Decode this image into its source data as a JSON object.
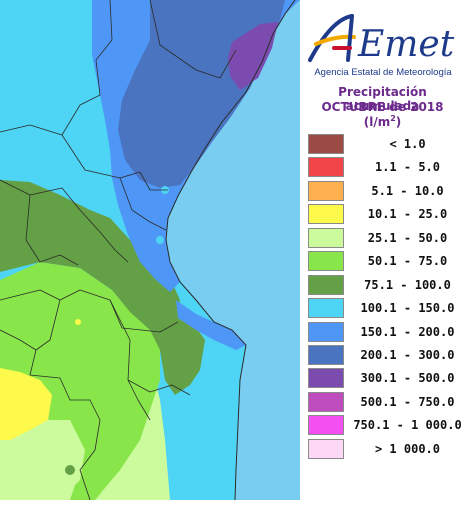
{
  "header": {
    "brand": "AEmet",
    "agency": "Agencia Estatal de Meteorología"
  },
  "title": {
    "line1": "Precipitación acumulada",
    "line2": "OCTUBRE de 2018",
    "units": "(l/m",
    "units_sup": "2",
    "units_close": ")"
  },
  "colors": {
    "sea": "#79cdf0",
    "border": "#2b2b2b",
    "accent": "#6b2a8c"
  },
  "legend": [
    {
      "label": "< 1.0",
      "color": "#9b4a44"
    },
    {
      "label": "1.1 - 5.0",
      "color": "#f2454a"
    },
    {
      "label": "5.1 - 10.0",
      "color": "#fdb04e"
    },
    {
      "label": "10.1 - 25.0",
      "color": "#fdfa4c"
    },
    {
      "label": "25.1 - 50.0",
      "color": "#ccfb9d"
    },
    {
      "label": "50.1 - 75.0",
      "color": "#89e64a"
    },
    {
      "label": "75.1 - 100.0",
      "color": "#64a046"
    },
    {
      "label": "100.1 - 150.0",
      "color": "#4ed4f4"
    },
    {
      "label": "150.1 - 200.0",
      "color": "#4f97f6"
    },
    {
      "label": "200.1 - 300.0",
      "color": "#4a74c0"
    },
    {
      "label": "300.1 - 500.0",
      "color": "#7c4bb0"
    },
    {
      "label": "500.1 - 750.0",
      "color": "#c04dbd"
    },
    {
      "label": "750.1 - 1 000.0",
      "color": "#f44ff1"
    },
    {
      "label": "> 1 000.0",
      "color": "#fdd7f6"
    }
  ]
}
